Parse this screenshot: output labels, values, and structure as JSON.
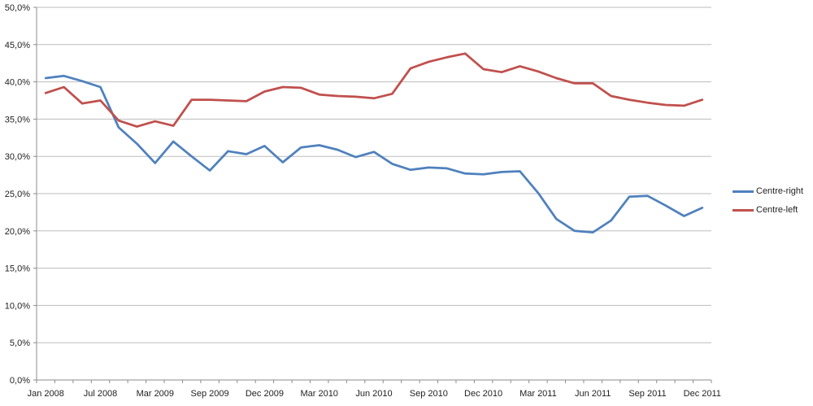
{
  "chart_data": {
    "type": "line",
    "title": "",
    "n_points": 37,
    "x_tick_labels": [
      "Jan 2008",
      "Jul 2008",
      "Mar 2009",
      "Sep 2009",
      "Dec 2009",
      "Mar 2010",
      "Jun 2010",
      "Sep 2010",
      "Dec 2010",
      "Mar 2011",
      "Jun 2011",
      "Sep 2011",
      "Dec 2011"
    ],
    "x_tick_indices": [
      0,
      3,
      6,
      9,
      12,
      15,
      18,
      21,
      24,
      27,
      30,
      33,
      36
    ],
    "y_tick_labels_top_to_bottom": [
      "50,0%",
      "45,0%",
      "40,0%",
      "35,0%",
      "30,0%",
      "25,0%",
      "20,0%",
      "15,0%",
      "10,0%",
      "5,0%",
      "0,0%"
    ],
    "ylim": [
      0,
      50
    ],
    "y_tick_step": 5,
    "y_tick_format": "comma-decimal-percent",
    "grid": "horizontal",
    "legend_position": "right",
    "series": [
      {
        "name": "Centre-right",
        "color": "#4F81BD",
        "values": [
          40.5,
          40.8,
          40.1,
          39.3,
          33.9,
          31.7,
          29.1,
          32.0,
          30.0,
          28.1,
          30.7,
          30.3,
          31.4,
          29.2,
          31.2,
          31.5,
          30.9,
          29.9,
          30.6,
          29.0,
          28.2,
          28.5,
          28.4,
          27.7,
          27.6,
          27.9,
          28.0,
          25.1,
          21.6,
          20.0,
          19.8,
          21.4,
          24.6,
          24.7,
          23.4,
          22.0,
          23.1
        ]
      },
      {
        "name": "Centre-left",
        "color": "#C0504D",
        "values": [
          38.5,
          39.3,
          37.1,
          37.5,
          34.8,
          34.0,
          34.7,
          34.1,
          37.6,
          37.6,
          37.5,
          37.4,
          38.7,
          39.3,
          39.2,
          38.3,
          38.1,
          38.0,
          37.8,
          38.4,
          41.8,
          42.7,
          43.3,
          43.8,
          41.7,
          41.3,
          42.1,
          41.4,
          40.5,
          39.8,
          39.8,
          38.1,
          37.6,
          37.2,
          36.9,
          36.8,
          37.6
        ]
      }
    ]
  },
  "colors": {
    "background": "#FFFFFF",
    "gridline": "#BDBDBD",
    "axis": "#8C8C8C",
    "tick_text": "#1F1F1F"
  }
}
